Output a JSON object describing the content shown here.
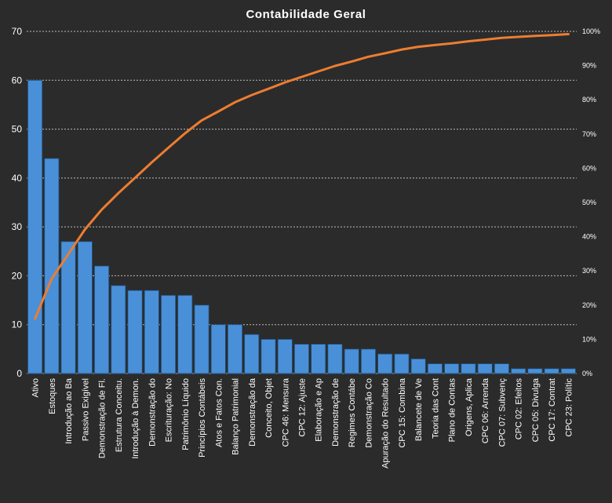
{
  "chart_data": {
    "type": "bar",
    "title": "Contabilidade  Geral",
    "xlabel": "",
    "ylabel": "",
    "ylim": [
      0,
      70
    ],
    "y_ticks": [
      0,
      10,
      20,
      30,
      40,
      50,
      60,
      70
    ],
    "y2lim": [
      0,
      100
    ],
    "y2_ticks": [
      "0%",
      "10%",
      "20%",
      "30%",
      "40%",
      "50%",
      "60%",
      "70%",
      "80%",
      "90%",
      "100%"
    ],
    "grid": true,
    "legend": "none",
    "categories": [
      "Ativo",
      "Estoques",
      "Introdução  ao Ba",
      "Passivo Exigível",
      "Demonstração de Fl.",
      "Estrutura Conceitu.",
      "Introdução à Demon.",
      "Demonstração do",
      "Escrituração: No",
      "Patrimônio  Líquido",
      "Princípios Contábeis",
      "Atos e Fatos Con.",
      "Balanço Patrimonial",
      "Demonstração da",
      "Conceito, Objet",
      "CPC 46: Mensura",
      "CPC 12: Ajuste",
      "Elaboração e Ap",
      "Demonstração de",
      "Regimes Contábe",
      "Demonstração Co",
      "Apuração do Resultado",
      "CPC 15: Combina",
      "Balancete de Ve",
      "Teoria das Cont",
      "Plano de Contas",
      "Origens, Aplica",
      "CPC 06: Arrenda",
      "CPC 07: Subvenç",
      "CPC 02: Efeitos",
      "CPC 05: Divulga",
      "CPC 17: Contrat",
      "CPC 23: Polític"
    ],
    "series": [
      {
        "type": "bar",
        "axis": "left",
        "color": "#4a90d9",
        "values": [
          60,
          44,
          27,
          27,
          22,
          18,
          17,
          17,
          16,
          16,
          14,
          10,
          10,
          8,
          7,
          7,
          6,
          6,
          6,
          5,
          5,
          4,
          4,
          3,
          2,
          2,
          2,
          2,
          2,
          1,
          1,
          1,
          1
        ]
      },
      {
        "type": "line",
        "axis": "right",
        "color": "#ed7d31",
        "values": [
          16,
          27.7,
          34.9,
          42.1,
          47.9,
          52.7,
          57.2,
          61.7,
          66,
          70.2,
          74,
          76.6,
          79.3,
          81.4,
          83.2,
          85.1,
          86.7,
          88.3,
          89.9,
          91.2,
          92.6,
          93.6,
          94.7,
          95.5,
          96,
          96.5,
          97.1,
          97.6,
          98.1,
          98.4,
          98.7,
          98.9,
          99.2
        ]
      }
    ]
  }
}
